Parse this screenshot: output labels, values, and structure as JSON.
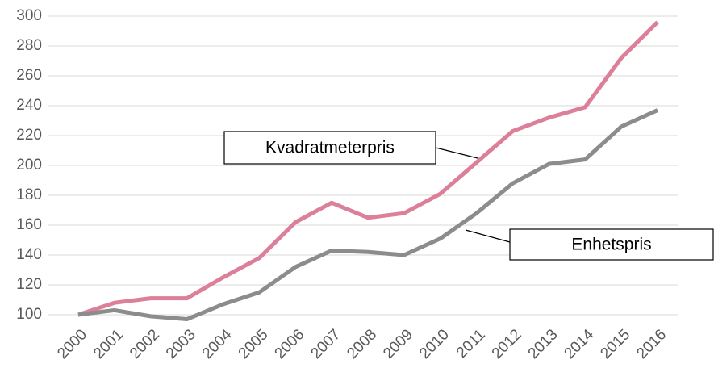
{
  "chart_data": {
    "type": "line",
    "categories": [
      "2000",
      "2001",
      "2002",
      "2003",
      "2004",
      "2005",
      "2006",
      "2007",
      "2008",
      "2009",
      "2010",
      "2011",
      "2012",
      "2013",
      "2014",
      "2015",
      "2016"
    ],
    "series": [
      {
        "name": "Kvadratmeterpris",
        "color": "#dc7f98",
        "values": [
          100,
          108,
          111,
          111,
          125,
          138,
          162,
          175,
          165,
          168,
          181,
          202,
          223,
          232,
          239,
          272,
          296
        ]
      },
      {
        "name": "Enhetspris",
        "color": "#8c8c8c",
        "values": [
          100,
          103,
          99,
          97,
          107,
          115,
          132,
          143,
          142,
          140,
          151,
          168,
          188,
          201,
          204,
          226,
          237
        ]
      }
    ],
    "ylim": [
      100,
      300
    ],
    "yticks": [
      100,
      120,
      140,
      160,
      180,
      200,
      220,
      240,
      260,
      280,
      300
    ],
    "grid": true
  }
}
